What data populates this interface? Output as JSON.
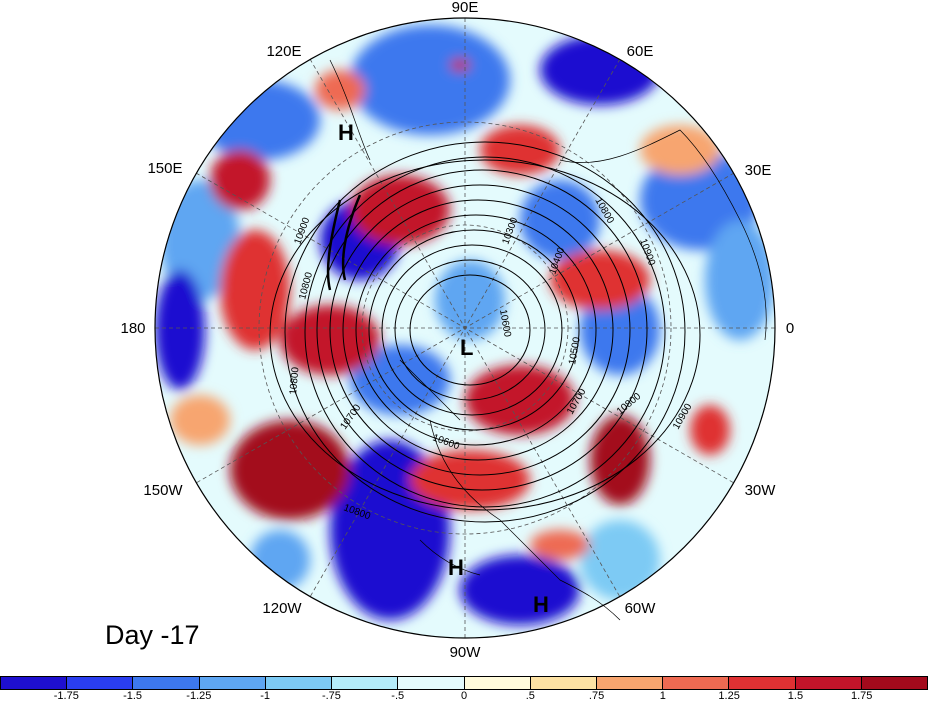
{
  "panel_label": "Day -17",
  "longitude_labels": [
    "90E",
    "60E",
    "30E",
    "0",
    "30W",
    "60W",
    "90W",
    "120W",
    "150W",
    "180",
    "150E",
    "120E"
  ],
  "contour_labels": [
    "10900",
    "10800",
    "10700",
    "10600",
    "10500",
    "10400",
    "10300",
    "10800",
    "10900",
    "10800",
    "10700",
    "10600",
    "10800",
    "10800",
    "10900"
  ],
  "pressure_centers": [
    {
      "symbol": "H",
      "region": "northwest Pacific / Japan"
    },
    {
      "symbol": "L",
      "region": "near North Pole"
    },
    {
      "symbol": "H",
      "region": "Gulf of Mexico"
    },
    {
      "symbol": "H",
      "region": "Caribbean"
    }
  ],
  "colorbar": {
    "tick_labels": [
      "-1.75",
      "-1.5",
      "-1.25",
      "-1",
      "-.75",
      "-.5",
      "0",
      ".5",
      ".75",
      "1",
      "1.25",
      "1.5",
      "1.75"
    ],
    "colors": [
      "#1e0fd0",
      "#2a3ef0",
      "#3d78ee",
      "#5ea6f2",
      "#7dcaf4",
      "#b4ecfa",
      "#e4fbfd",
      "#fffbdc",
      "#fde2a4",
      "#f7a56f",
      "#ee6a52",
      "#df3133",
      "#c3142a",
      "#a30a1c"
    ]
  },
  "colors": {
    "land_outline": "#000000",
    "contour": "#000000",
    "grid": "#555555"
  }
}
